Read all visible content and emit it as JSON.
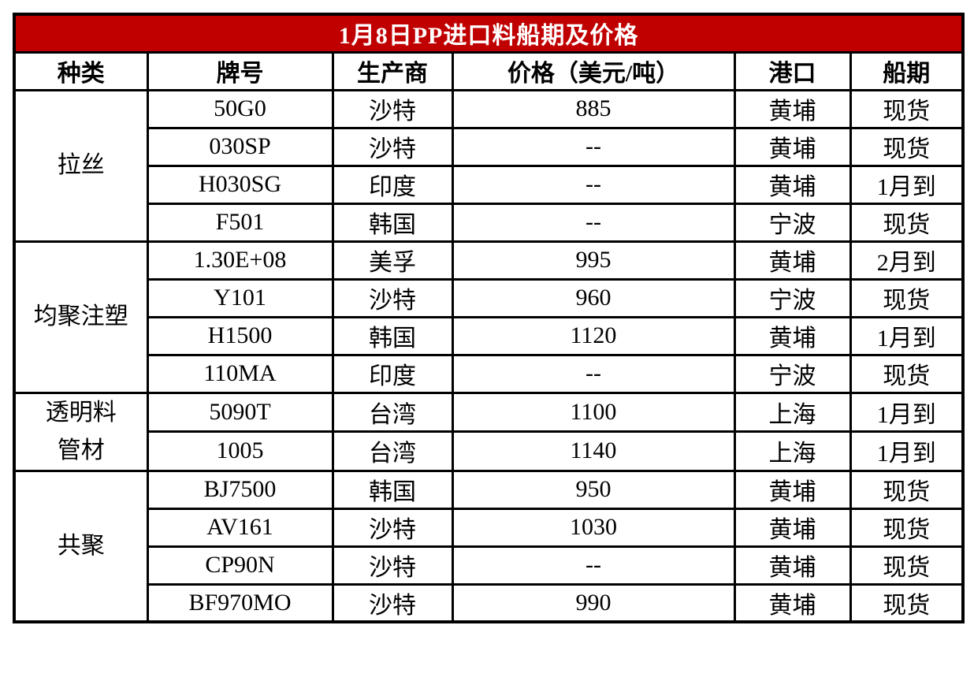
{
  "chart_data": {
    "type": "table",
    "title": "1月8日PP进口料船期及价格",
    "columns": [
      "种类",
      "牌号",
      "生产商",
      "价格（美元/吨）",
      "港口",
      "船期"
    ],
    "groups": [
      {
        "category": "拉丝",
        "rows": [
          {
            "grade": "50G0",
            "producer": "沙特",
            "price": "885",
            "port": "黄埔",
            "shipdate": "现货"
          },
          {
            "grade": "030SP",
            "producer": "沙特",
            "price": "--",
            "port": "黄埔",
            "shipdate": "现货"
          },
          {
            "grade": "H030SG",
            "producer": "印度",
            "price": "--",
            "port": "黄埔",
            "shipdate": "1月到"
          },
          {
            "grade": "F501",
            "producer": "韩国",
            "price": "--",
            "port": "宁波",
            "shipdate": "现货"
          }
        ]
      },
      {
        "category": "均聚注塑",
        "rows": [
          {
            "grade": "1.30E+08",
            "producer": "美孚",
            "price": "995",
            "port": "黄埔",
            "shipdate": "2月到"
          },
          {
            "grade": "Y101",
            "producer": "沙特",
            "price": "960",
            "port": "宁波",
            "shipdate": "现货"
          },
          {
            "grade": "H1500",
            "producer": "韩国",
            "price": "1120",
            "port": "黄埔",
            "shipdate": "1月到"
          },
          {
            "grade": "110MA",
            "producer": "印度",
            "price": "--",
            "port": "宁波",
            "shipdate": "现货"
          }
        ]
      },
      {
        "category": "透明料\n管材",
        "rows": [
          {
            "grade": "5090T",
            "producer": "台湾",
            "price": "1100",
            "port": "上海",
            "shipdate": "1月到"
          },
          {
            "grade": "1005",
            "producer": "台湾",
            "price": "1140",
            "port": "上海",
            "shipdate": "1月到"
          }
        ]
      },
      {
        "category": "共聚",
        "rows": [
          {
            "grade": "BJ7500",
            "producer": "韩国",
            "price": "950",
            "port": "黄埔",
            "shipdate": "现货"
          },
          {
            "grade": "AV161",
            "producer": "沙特",
            "price": "1030",
            "port": "黄埔",
            "shipdate": "现货"
          },
          {
            "grade": "CP90N",
            "producer": "沙特",
            "price": "--",
            "port": "黄埔",
            "shipdate": "现货"
          },
          {
            "grade": "BF970MO",
            "producer": "沙特",
            "price": "990",
            "port": "黄埔",
            "shipdate": "现货"
          }
        ]
      }
    ]
  },
  "colors": {
    "title_bg": "#c00000",
    "title_text": "#ffffff",
    "border": "#000000",
    "cell_bg": "#ffffff"
  }
}
